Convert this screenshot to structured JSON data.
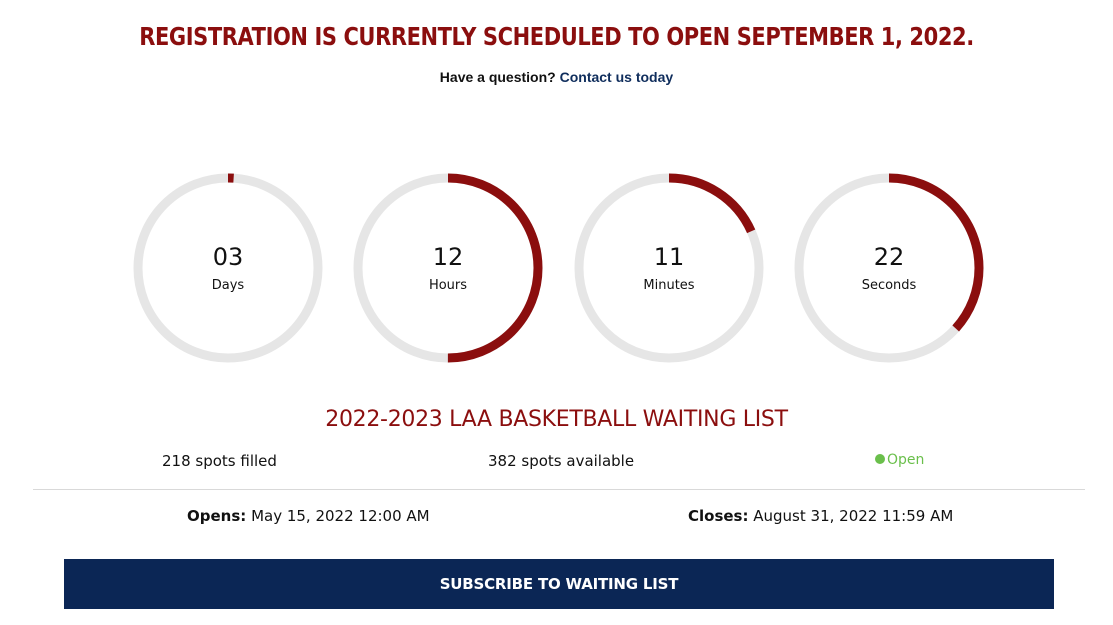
{
  "theme": {
    "accent": "#8b0e0e",
    "ring_track": "#e6e6e6",
    "link": "#0f2d5c",
    "open_green": "#6abf4b",
    "button_bg": "#0b2655"
  },
  "header": {
    "headline": "REGISTRATION IS CURRENTLY SCHEDULED TO OPEN SEPTEMBER 1, 2022.",
    "question_text": "Have a question?",
    "contact_link": "Contact us today"
  },
  "countdown": [
    {
      "value": "03",
      "label": "Days",
      "progress": 0.01
    },
    {
      "value": "12",
      "label": "Hours",
      "progress": 0.5
    },
    {
      "value": "11",
      "label": "Minutes",
      "progress": 0.183
    },
    {
      "value": "22",
      "label": "Seconds",
      "progress": 0.367
    }
  ],
  "waiting_list": {
    "title": "2022-2023 LAA BASKETBALL WAITING LIST",
    "spots_filled": "218 spots filled",
    "spots_available": "382 spots available",
    "status": "Open",
    "opens_label": "Opens:",
    "opens_value": "May 15, 2022 12:00 AM",
    "closes_label": "Closes:",
    "closes_value": "August 31, 2022 11:59 AM",
    "subscribe_label": "SUBSCRIBE TO WAITING LIST"
  }
}
